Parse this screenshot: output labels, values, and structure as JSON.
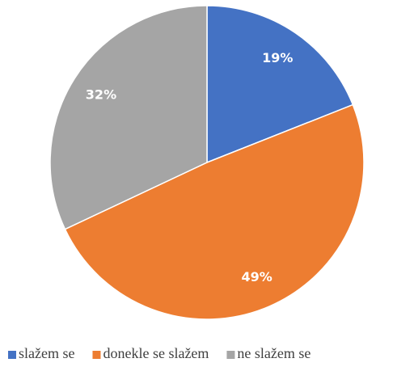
{
  "chart_data": {
    "type": "pie",
    "categories": [
      "slažem se",
      "donekle se slažem",
      "ne slažem se"
    ],
    "values": [
      19,
      49,
      32
    ],
    "value_labels": [
      "19%",
      "49%",
      "32%"
    ],
    "colors": [
      "#4472c4",
      "#ed7d31",
      "#a5a5a5"
    ],
    "legend": "bottom"
  }
}
